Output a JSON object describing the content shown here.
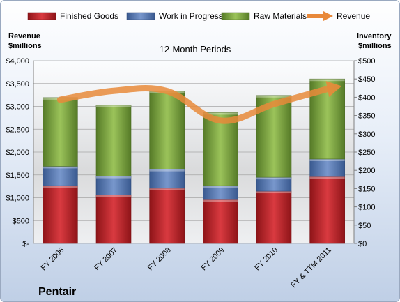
{
  "chart_data": {
    "type": "bar",
    "subtype": "stacked-bar-with-line",
    "title": "12-Month Periods",
    "brand": "Pentair",
    "categories": [
      "FY 2006",
      "FY 2007",
      "FY 2008",
      "FY 2009",
      "FY 2010",
      "FY & TTM 2011"
    ],
    "series": [
      {
        "name": "Finished Goods",
        "axis": "right",
        "color": "#c0262e",
        "values": [
          158,
          133,
          151,
          120,
          143,
          183
        ]
      },
      {
        "name": "Work in Progress",
        "axis": "right",
        "color": "#4f74b0",
        "values": [
          53,
          51,
          52,
          38,
          38,
          48
        ]
      },
      {
        "name": "Raw Materials",
        "axis": "right",
        "color": "#77a33b",
        "values": [
          188,
          194,
          214,
          200,
          224,
          219
        ]
      },
      {
        "name": "Revenue",
        "axis": "left",
        "type": "line",
        "color": "#e8893a",
        "values": [
          3145,
          3340,
          3335,
          2690,
          3050,
          3380
        ]
      }
    ],
    "ylabel_left": "Revenue\n$millions",
    "ylabel_right": "Inventory\n$millions",
    "ylim_left": [
      0,
      4000
    ],
    "ylim_right": [
      0,
      500
    ],
    "yticks_left": [
      "$-",
      "$500",
      "$1,000",
      "$1,500",
      "$2,000",
      "$2,500",
      "$3,000",
      "$3,500",
      "$4,000"
    ],
    "yticks_right": [
      "$0",
      "$50",
      "$100",
      "$150",
      "$200",
      "$250",
      "$300",
      "$350",
      "$400",
      "$450",
      "$500"
    ],
    "grid": true,
    "legend": "top"
  }
}
